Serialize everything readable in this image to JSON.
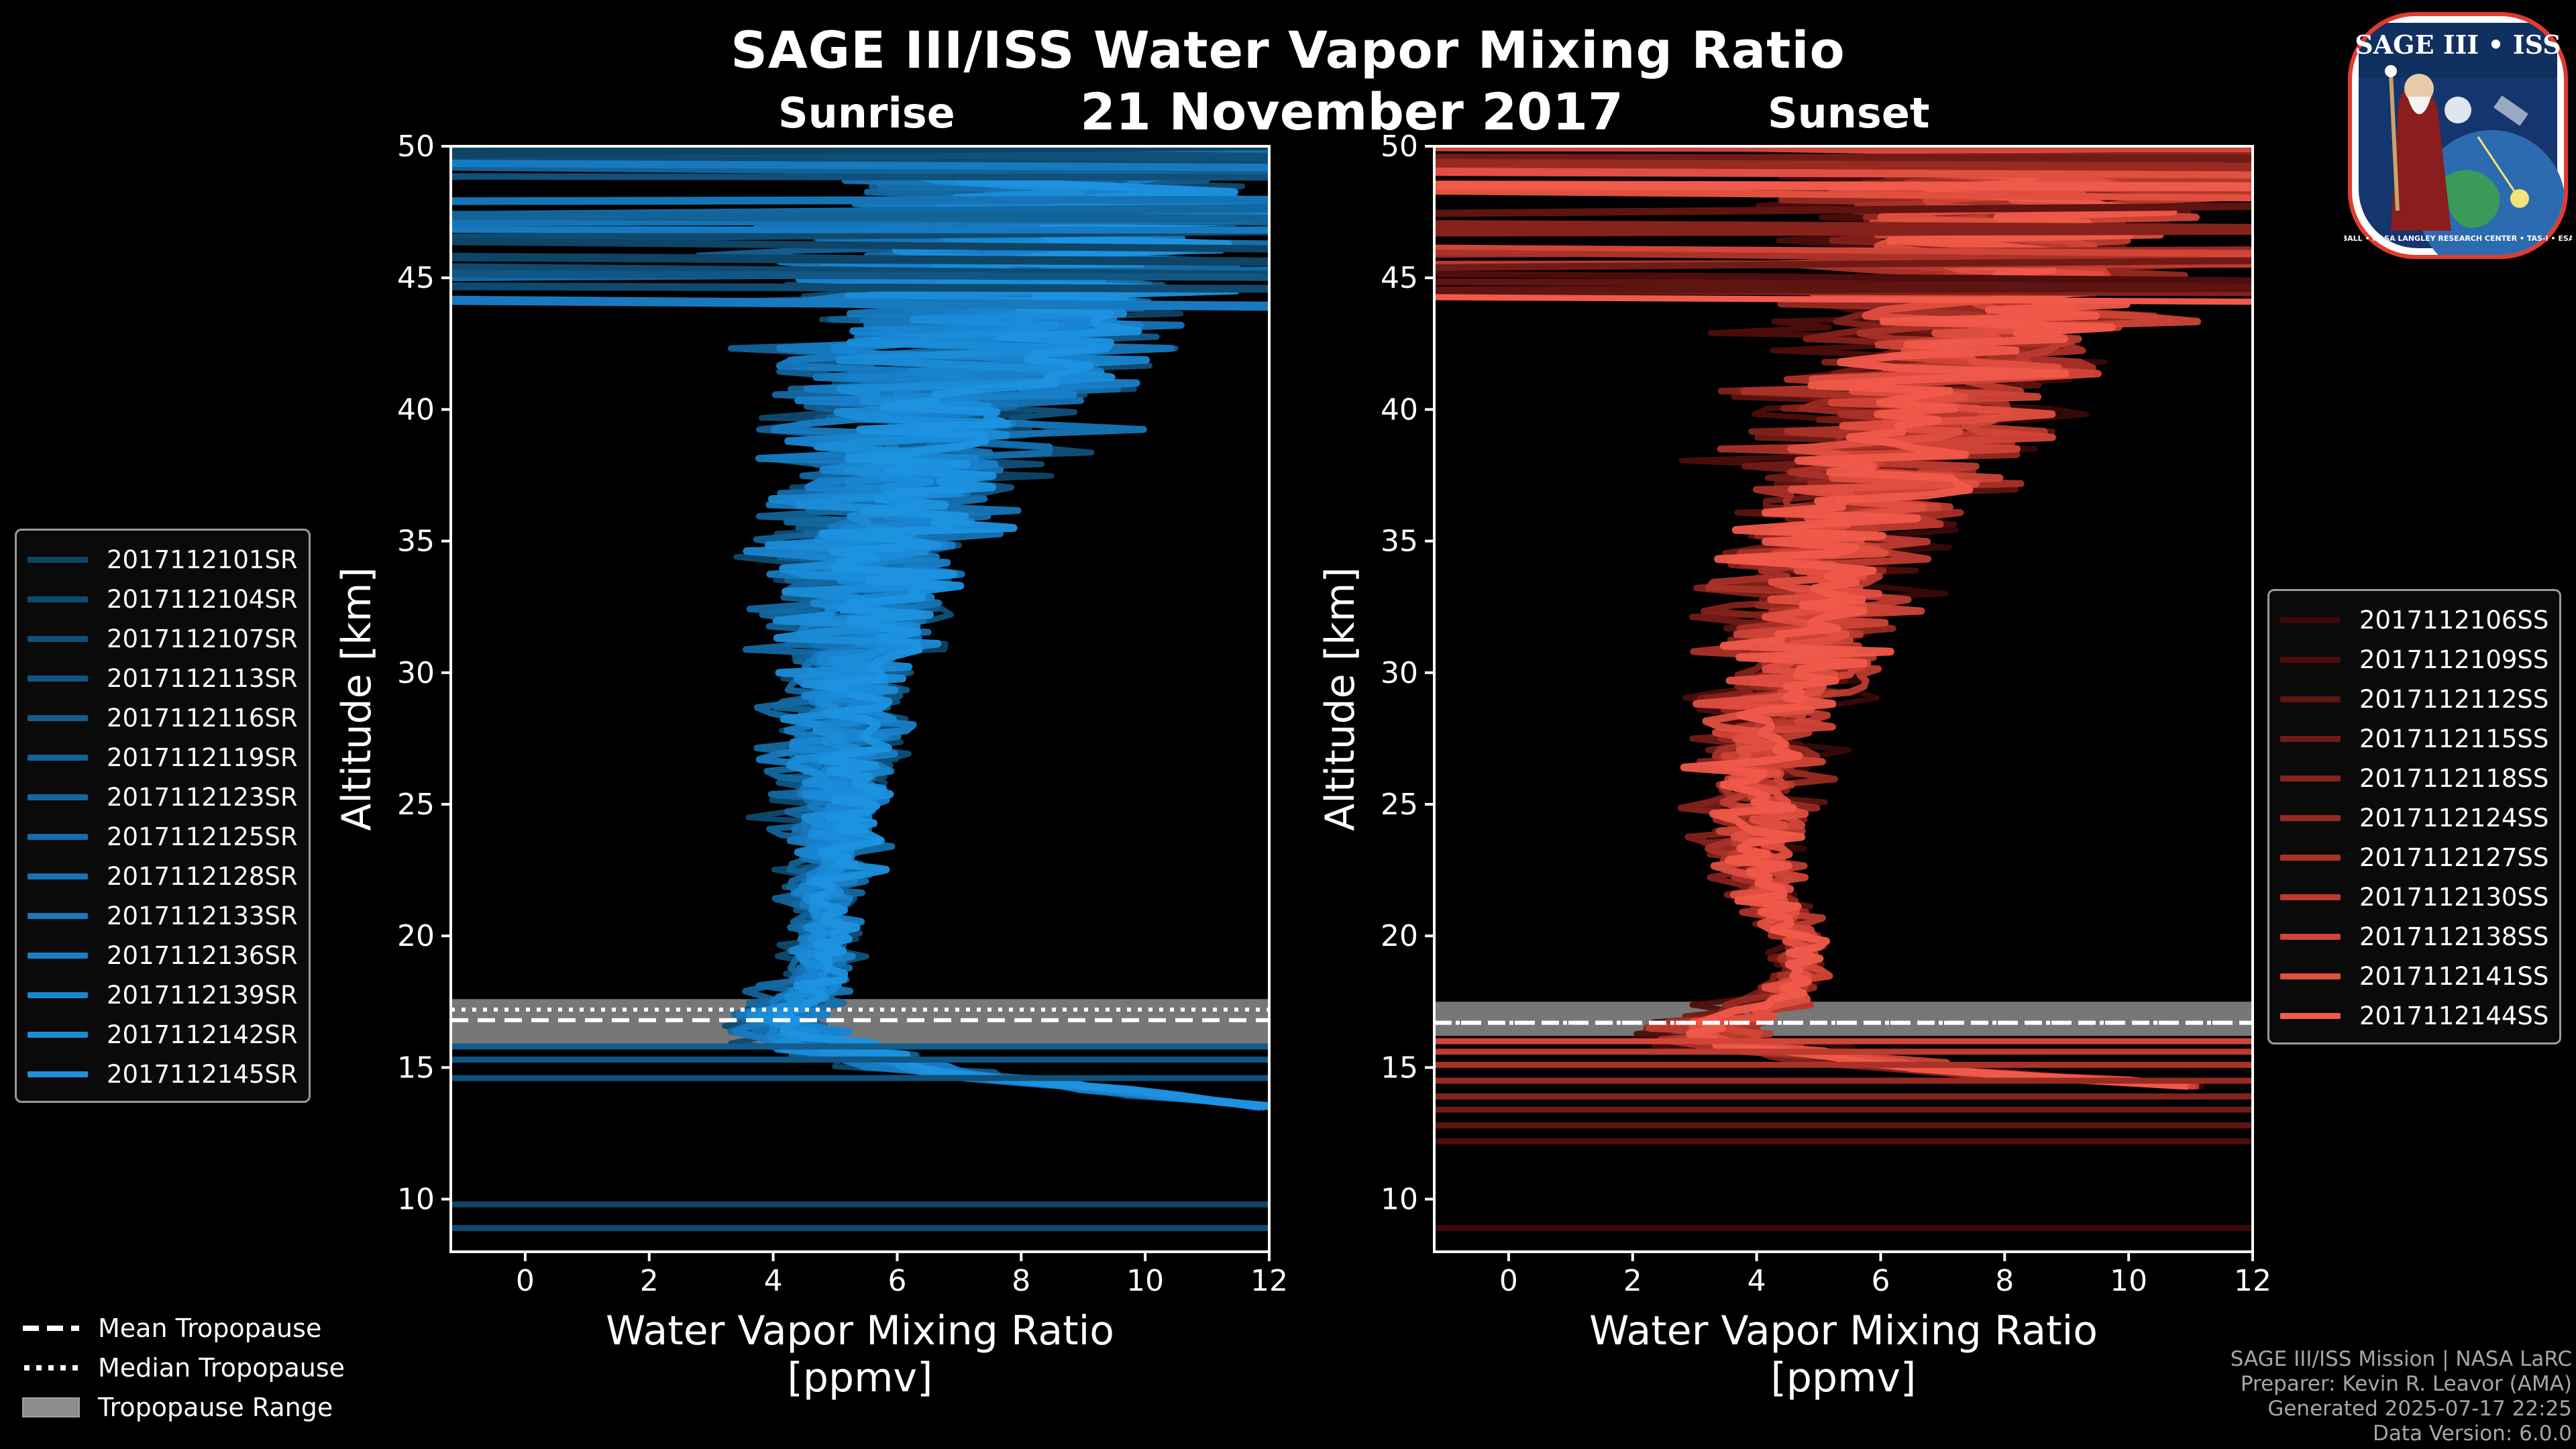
{
  "header": {
    "title": "SAGE III/ISS Water Vapor Mixing Ratio",
    "date": "21 November 2017",
    "sunrise_label": "Sunrise",
    "sunset_label": "Sunset"
  },
  "logo": {
    "text": "SAGE III • ISS",
    "subtext": "BALL • NASA LANGLEY RESEARCH CENTER • TAS-I • ESA"
  },
  "colors": {
    "background": "#000000",
    "sunrise_base": "#1e90d8",
    "sunset_base": "#f05a4a",
    "tropopause_range": "#8c8c8c"
  },
  "legend_sunrise": {
    "items": [
      {
        "label": "2017112101SR",
        "color": "#0e4466"
      },
      {
        "label": "2017112104SR",
        "color": "#0f4a70"
      },
      {
        "label": "2017112107SR",
        "color": "#10507a"
      },
      {
        "label": "2017112113SR",
        "color": "#115684"
      },
      {
        "label": "2017112116SR",
        "color": "#125c8e"
      },
      {
        "label": "2017112119SR",
        "color": "#136298"
      },
      {
        "label": "2017112123SR",
        "color": "#1468a2"
      },
      {
        "label": "2017112125SR",
        "color": "#156eac"
      },
      {
        "label": "2017112128SR",
        "color": "#1674b6"
      },
      {
        "label": "2017112133SR",
        "color": "#177ac0"
      },
      {
        "label": "2017112136SR",
        "color": "#1880ca"
      },
      {
        "label": "2017112139SR",
        "color": "#1986d2"
      },
      {
        "label": "2017112142SR",
        "color": "#1a8cd8"
      },
      {
        "label": "2017112145SR",
        "color": "#1c92e0"
      }
    ]
  },
  "legend_sunset": {
    "items": [
      {
        "label": "2017112106SS",
        "color": "#3a0808"
      },
      {
        "label": "2017112109SS",
        "color": "#4c0d0c"
      },
      {
        "label": "2017112112SS",
        "color": "#5e1410"
      },
      {
        "label": "2017112115SS",
        "color": "#711b16"
      },
      {
        "label": "2017112118SS",
        "color": "#84221b"
      },
      {
        "label": "2017112124SS",
        "color": "#972a21"
      },
      {
        "label": "2017112127SS",
        "color": "#aa3228"
      },
      {
        "label": "2017112130SS",
        "color": "#bd3b2f"
      },
      {
        "label": "2017112138SS",
        "color": "#d04537"
      },
      {
        "label": "2017112141SS",
        "color": "#e04f40"
      },
      {
        "label": "2017112144SS",
        "color": "#f05a4a"
      }
    ]
  },
  "legend_tropopause": {
    "mean_label": "Mean Tropopause",
    "median_label": "Median Tropopause",
    "range_label": "Tropopause Range"
  },
  "footer": {
    "line1": "SAGE III/ISS Mission | NASA LaRC",
    "line2": "Preparer: Kevin R. Leavor (AMA)",
    "line3": "Generated 2025-07-17 22:25",
    "line4": "Data Version: 6.0.0"
  },
  "chart_data": [
    {
      "type": "line",
      "panel": "Sunrise",
      "xlabel": "Water Vapor Mixing Ratio\n[ppmv]",
      "ylabel": "Altitude [km]",
      "xlim": [
        -1.2,
        12
      ],
      "ylim": [
        8,
        50
      ],
      "xticks": [
        0,
        2,
        4,
        6,
        8,
        10,
        12
      ],
      "yticks": [
        10,
        15,
        20,
        25,
        30,
        35,
        40,
        45,
        50
      ],
      "tropopause": {
        "mean": 16.8,
        "median": 17.2,
        "range": [
          15.7,
          17.6
        ]
      },
      "envelope": {
        "altitude": [
          13.5,
          15,
          16,
          16.5,
          17,
          17.5,
          18,
          19,
          20,
          22,
          24,
          26,
          28,
          30,
          32,
          34,
          36,
          38,
          40,
          42,
          44,
          46,
          48,
          50
        ],
        "center": [
          12,
          6,
          4.3,
          3.9,
          4.1,
          4.4,
          4.6,
          4.7,
          4.8,
          4.8,
          4.9,
          5.0,
          5.1,
          5.2,
          5.3,
          5.5,
          5.8,
          6.2,
          6.8,
          7.2,
          7.6,
          8.0,
          8.4,
          8.6
        ],
        "spread": [
          0.4,
          1.5,
          1.8,
          1.8,
          1.4,
          1.3,
          1.2,
          0.9,
          0.9,
          1.2,
          1.5,
          1.7,
          1.9,
          2.1,
          2.4,
          2.7,
          3.1,
          3.5,
          4.0,
          4.6,
          5.2,
          6.0,
          6.6,
          7.0
        ]
      },
      "series_count": 14
    },
    {
      "type": "line",
      "panel": "Sunset",
      "xlabel": "Water Vapor Mixing Ratio\n[ppmv]",
      "ylabel": "Altitude [km]",
      "xlim": [
        -1.2,
        12
      ],
      "ylim": [
        8,
        50
      ],
      "xticks": [
        0,
        2,
        4,
        6,
        8,
        10,
        12
      ],
      "yticks": [
        10,
        15,
        20,
        25,
        30,
        35,
        40,
        45,
        50
      ],
      "tropopause": {
        "mean": 16.7,
        "median": 16.7,
        "range": [
          16.2,
          17.5
        ]
      },
      "envelope": {
        "altitude": [
          14.3,
          15,
          16,
          16.5,
          17,
          17.5,
          18,
          19,
          20,
          22,
          24,
          26,
          28,
          30,
          32,
          34,
          36,
          38,
          40,
          42,
          44,
          46,
          48,
          50
        ],
        "center": [
          11,
          6.5,
          3.5,
          3.3,
          3.8,
          4.3,
          4.6,
          4.8,
          4.7,
          4.1,
          4.0,
          4.1,
          4.4,
          4.7,
          5.0,
          5.3,
          5.8,
          6.4,
          7.0,
          7.5,
          7.9,
          8.2,
          8.5,
          8.7
        ],
        "spread": [
          0.6,
          1.8,
          2.0,
          1.8,
          1.5,
          1.3,
          1.1,
          0.9,
          0.9,
          1.2,
          1.5,
          1.7,
          2.0,
          2.3,
          2.7,
          3.0,
          3.5,
          4.0,
          4.6,
          5.2,
          5.8,
          6.4,
          6.9,
          7.2
        ]
      },
      "series_count": 11
    }
  ]
}
